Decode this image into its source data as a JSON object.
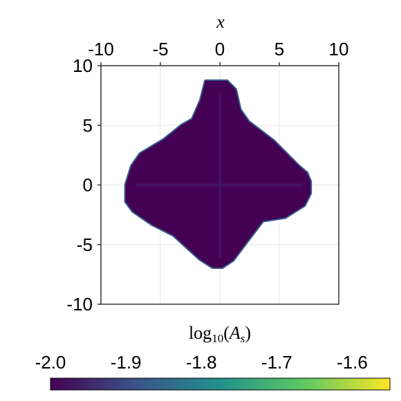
{
  "chart_data": {
    "type": "heatmap",
    "xlabel": "x",
    "colorbar_label": {
      "func": "log",
      "base": "10",
      "open": "(",
      "var": "A",
      "sub": "s",
      "close": ")"
    },
    "xlim": [
      -10,
      10
    ],
    "ylim": [
      -10,
      10
    ],
    "x_ticks": [
      "-10",
      "-5",
      "0",
      "5",
      "10"
    ],
    "y_ticks": [
      "10",
      "5",
      "0",
      "-5",
      "-10"
    ],
    "x_tick_values": [
      -10,
      -5,
      0,
      5,
      10
    ],
    "y_tick_values": [
      10,
      5,
      0,
      -5,
      -10
    ],
    "colorbar_range": [
      -2.0,
      -1.55
    ],
    "colorbar_ticks": [
      "-2.0",
      "-1.9",
      "-1.8",
      "-1.7",
      "-1.6"
    ],
    "colorbar_tick_values": [
      -2.0,
      -1.9,
      -1.8,
      -1.7,
      -1.6
    ],
    "colormap": "viridis",
    "colormap_stops": [
      "#440154",
      "#3b528b",
      "#21918c",
      "#5ec962",
      "#fde725"
    ],
    "region": {
      "description_values": {
        "top_y": 8.7,
        "bottom_y": -6.9,
        "left_x": -7.9,
        "right_x": 7.6,
        "center": [
          0,
          0
        ]
      },
      "interior_value": -2.0,
      "edge_value": -1.87
    },
    "grid": true
  }
}
